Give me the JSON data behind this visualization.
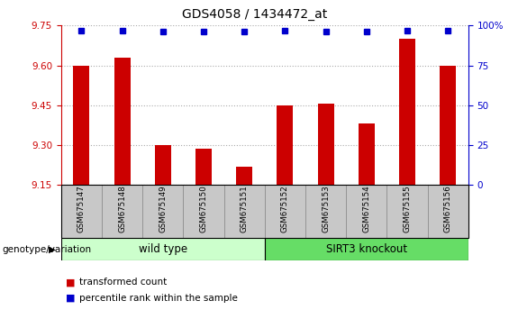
{
  "title": "GDS4058 / 1434472_at",
  "samples": [
    "GSM675147",
    "GSM675148",
    "GSM675149",
    "GSM675150",
    "GSM675151",
    "GSM675152",
    "GSM675153",
    "GSM675154",
    "GSM675155",
    "GSM675156"
  ],
  "bar_values": [
    9.6,
    9.63,
    9.3,
    9.285,
    9.22,
    9.45,
    9.455,
    9.38,
    9.7,
    9.6
  ],
  "percentile_values": [
    97,
    97,
    96,
    96,
    96,
    97,
    96,
    96,
    97,
    97
  ],
  "ylim_left": [
    9.15,
    9.75
  ],
  "ylim_right": [
    0,
    100
  ],
  "yticks_left": [
    9.15,
    9.3,
    9.45,
    9.6,
    9.75
  ],
  "yticks_right": [
    0,
    25,
    50,
    75,
    100
  ],
  "bar_color": "#cc0000",
  "dot_color": "#0000cc",
  "wild_type_label": "wild type",
  "knockout_label": "SIRT3 knockout",
  "group_label": "genotype/variation",
  "legend_bar_label": "transformed count",
  "legend_dot_label": "percentile rank within the sample",
  "wild_type_color": "#ccffcc",
  "knockout_color": "#66dd66",
  "xlabel_area_color": "#c8c8c8",
  "right_axis_color": "#0000cc",
  "left_axis_color": "#cc0000",
  "bar_width": 0.4
}
